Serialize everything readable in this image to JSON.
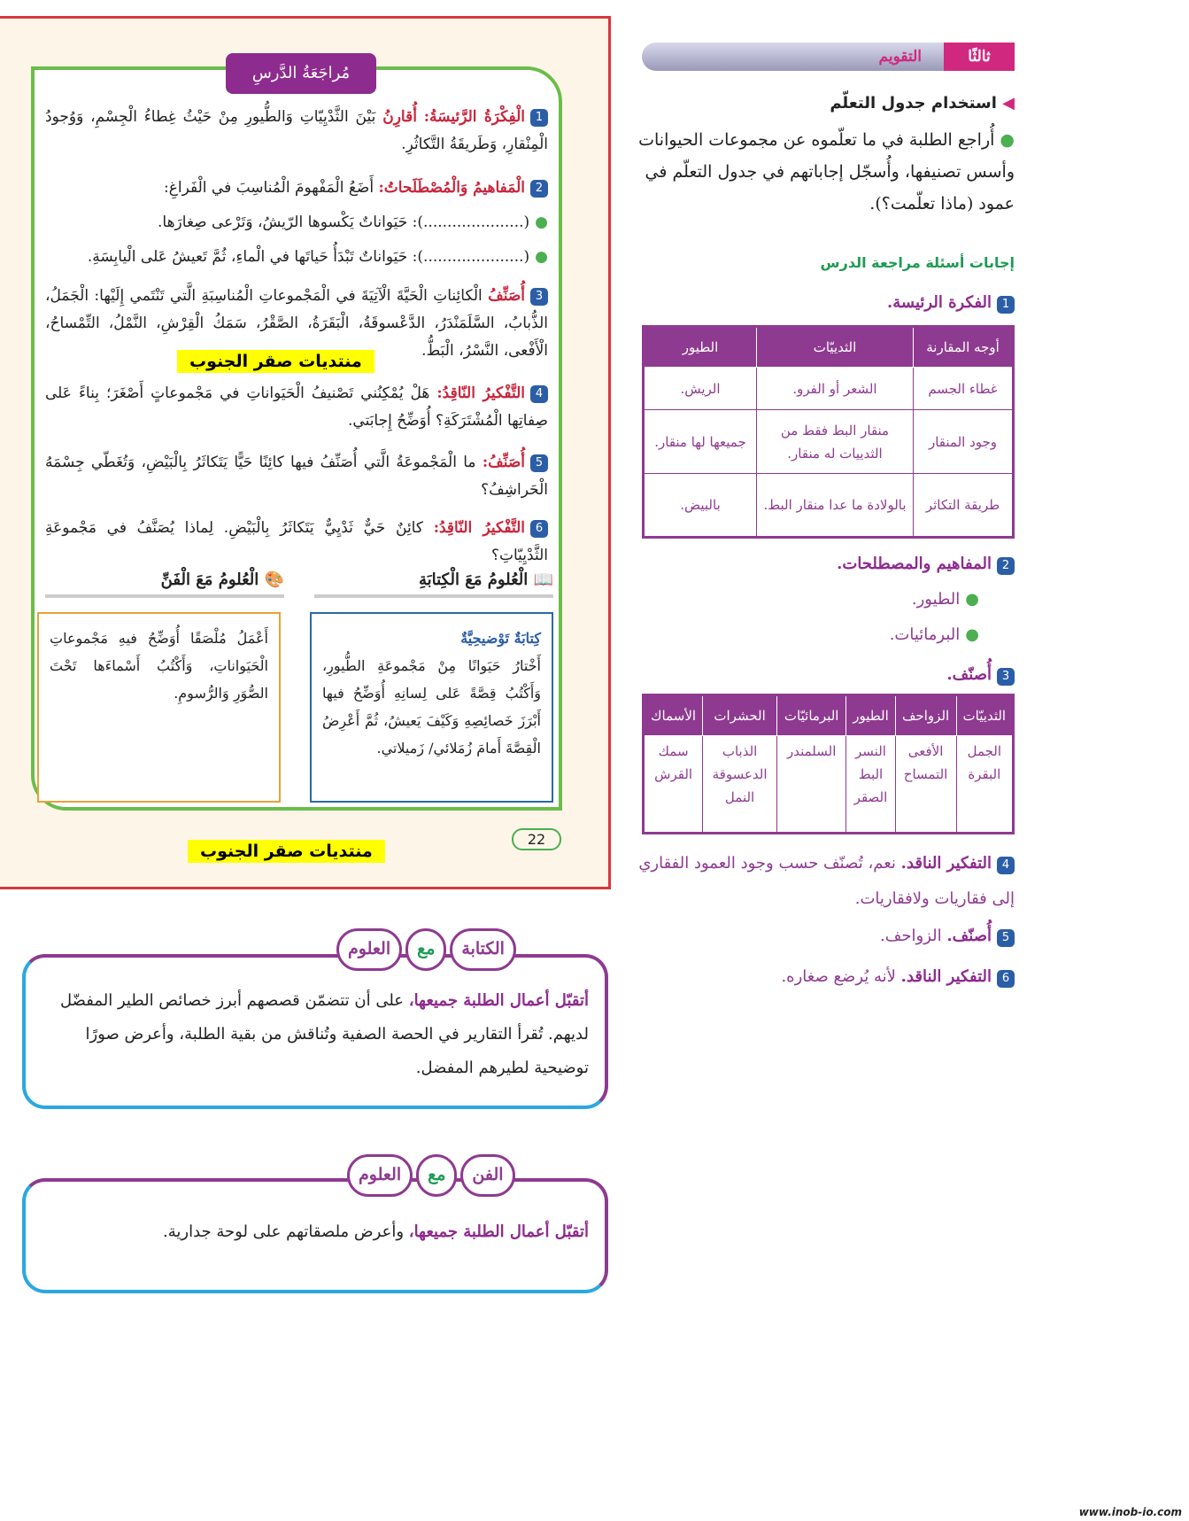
{
  "review": {
    "title": "مُراجَعَةُ الدَّرسِ",
    "q1": {
      "num": "1",
      "label": "الْفِكْرَةُ الرَّئيسَةُ:",
      "verb": "أُقارِنُ",
      "text": "بَيْنَ الثَّدْيِيّاتِ وَالطُّيورِ مِنْ حَيْثُ غِطاءُ الْجِسْمِ، وَوُجودُ الْمِنْقارِ، وَطَريقَةُ التَّكاثُرِ."
    },
    "q2": {
      "num": "2",
      "label": "الْمَفاهيمُ وَالْمُصْطَلَحاتُ:",
      "text": "أَضَعُ الْمَفْهومَ الْمُناسِبَ في الْفَراغِ:",
      "items": [
        "(.....................): حَيَواناتٌ يَكْسوها الرّيشُ، وَتَرْعى صِغارَها.",
        "(.....................): حَيَواناتٌ تَبْدَأُ حَياتَها في الْماءِ، ثُمَّ تَعيشُ عَلى الْيابِسَةِ."
      ]
    },
    "q3": {
      "num": "3",
      "label": "أُصَنِّفُ",
      "text": "الْكائِناتِ الْحَيَّةَ الْآتِيَةَ في الْمَجْموعاتِ الْمُناسِبَةِ الَّتي تَنْتَمي إِلَيْها: الْجَمَلُ، الذُّبابُ، السَّلَمَنْدَرُ، الدَّعْسوقَةُ، الْبَقَرَةُ، الصَّقْرُ، سَمَكُ الْقِرْشِ، النَّمْلُ، التِّمْساحُ، الْأَفْعى، النَّسْرُ، الْبَطُّ."
    },
    "q4": {
      "num": "4",
      "label": "التَّفْكيرُ النّاقِدُ:",
      "text": "هَلْ يُمْكِنُني تَصْنيفُ الْحَيَواناتِ في مَجْموعاتٍ أَصْغَرَ؛ بِناءً عَلى صِفاتِها الْمُشْتَرَكَةِ؟ أُوَضِّحُ إِجابَتي."
    },
    "q5": {
      "num": "5",
      "label": "أُصَنِّفُ:",
      "text": "ما الْمَجْموعَةُ الَّتي أُصَنِّفُ فيها كائِنًا حَيًّا يَتَكاثَرُ بِالْبَيْضِ، وَتُغَطّي جِسْمَهُ الْحَراشِفُ؟"
    },
    "q6": {
      "num": "6",
      "label": "التَّفْكيرُ النّاقِدُ:",
      "text": "كائِنٌ حَيٌّ ثَدْيِيٌّ يَتَكاثَرُ بِالْبَيْضِ. لِماذا يُصَنَّفُ في مَجْموعَةِ الثَّدْيِيّاتِ؟"
    },
    "writing": {
      "heading": "الْعُلومُ مَعَ الْكِتابَةِ",
      "subtitle": "كِتابَةٌ تَوْضيحِيَّةٌ",
      "text": "أَخْتارُ حَيَوانًا مِنْ مَجْموعَةِ الطُّيورِ، وَأَكْتُبُ قِصَّةً عَلى لِسانِهِ أُوَضِّحُ فيها أَبْرَزَ خَصائِصِهِ وَكَيْفَ يَعيشُ، ثُمَّ أَعْرِضُ الْقِصَّةَ أَمامَ زُمَلائي/ زَميلاتي."
    },
    "art": {
      "heading": "الْعُلومُ مَعَ الْفَنِّ",
      "text": "أَعْمَلُ مُلْصَقًا أُوَضِّحُ فيهِ مَجْموعاتِ الْحَيَواناتِ، وَأَكْتُبُ أَسْماءَها تَحْتَ الصُّوَرِ وَالرُّسومِ."
    },
    "page_number": "22"
  },
  "watermark": "منتديات صقر الجنوب",
  "right": {
    "section_num": "ثالثًا",
    "section": "التقويم",
    "h1": "استخدام جدول التعلّم",
    "p1": "أُراجع الطلبة في ما تعلّموه عن مجموعات الحيوانات وأسس تصنيفها، وأُسجّل إجاباتهم في جدول التعلّم في عمود (ماذا تعلّمت؟).",
    "h2": "إجابات أسئلة مراجعة الدرس",
    "a1": "الفكرة الرئيسة.",
    "t1": {
      "headers": [
        "أوجه المقارنة",
        "الثدييّات",
        "الطيور"
      ],
      "rows": [
        [
          "غطاء الجسم",
          "الشعر أو الفرو.",
          "الريش."
        ],
        [
          "وجود المنقار",
          "منقار البط فقط من الثدييات له منقار.",
          "جميعها لها منقار."
        ],
        [
          "طريقة التكاثر",
          "بالولادة ما عدا منقار البط.",
          "بالبيض."
        ]
      ]
    },
    "a2": "المفاهيم والمصطلحات.",
    "a2_items": [
      "الطيور.",
      "البرمائيات."
    ],
    "a3": "أُصنّف.",
    "t2": {
      "headers": [
        "الثدييّات",
        "الزواحف",
        "الطيور",
        "البرمائيّات",
        "الحشرات",
        "الأسماك"
      ],
      "cells": [
        [
          "الجمل",
          "البقرة"
        ],
        [
          "الأفعى",
          "التمساح"
        ],
        [
          "النسر",
          "البط",
          "الصقر"
        ],
        [
          "السلمندر"
        ],
        [
          "الذباب",
          "الدعسوقة",
          "النمل"
        ],
        [
          "سمك",
          "القرش"
        ]
      ]
    },
    "a4_label": "التفكير الناقد.",
    "a4": "نعم، تُصنّف حسب وجود العمود الفقاري إلى فقاريات ولافقاريات.",
    "a5_label": "أُصنّف.",
    "a5": "الزواحف.",
    "a6_label": "التفكير الناقد.",
    "a6": "لأنه يُرضع صغاره."
  },
  "bottom": {
    "box1": {
      "pills": [
        "العلوم",
        "مع",
        "الكتابة"
      ],
      "lead": "أتقبّل أعمال الطلبة جميعها،",
      "text": "على أن تتضمّن قصصهم أبرز خصائص الطير المفضّل لديهم. تُقرأ التقارير في الحصة الصفية وتُناقش من بقية الطلبة، وأعرض صورًا توضيحية لطيرهم المفضل."
    },
    "box2": {
      "pills": [
        "العلوم",
        "مع",
        "الفن"
      ],
      "lead": "أتقبّل أعمال الطلبة جميعها،",
      "text": "وأعرض ملصقاتهم على لوحة جدارية."
    }
  },
  "footer": "www.inob-io.com",
  "colors": {
    "purple": "#8e3a90",
    "red": "#c8263c",
    "blue": "#2b5ea6",
    "green": "#6bbd4a"
  }
}
